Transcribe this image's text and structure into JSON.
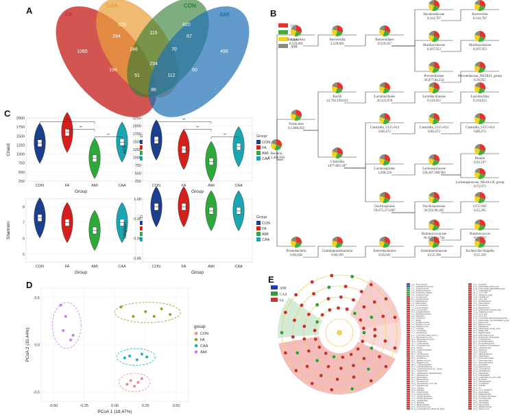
{
  "panels": {
    "A": "A",
    "B": "B",
    "C": "C",
    "D": "D",
    "E": "E"
  },
  "venn": {
    "sets": [
      {
        "name": "FA",
        "color": "#c9302c"
      },
      {
        "name": "CAA",
        "color": "#e9a03b"
      },
      {
        "name": "CON",
        "color": "#2e7d32"
      },
      {
        "name": "AMI",
        "color": "#1f6fb5"
      }
    ],
    "counts": {
      "FA_only": "1065",
      "CAA_only": "928",
      "CON_only": "820",
      "AMI_only": "496",
      "FA_CAA": "294",
      "CAA_CON": "115",
      "CON_AMI": "67",
      "FA_CAA_CON": "246",
      "CAA_CON_AMI": "70",
      "FA_CON": "196",
      "CAA_AMI": "60",
      "ALL": "234",
      "FA_CON_AMI": "51",
      "FA_CAA_AMI": "112",
      "FA_AMI": "86"
    }
  },
  "tree": {
    "legend": [
      {
        "name": "CON",
        "color": "#e8332a"
      },
      {
        "name": "FA",
        "color": "#3fae3c"
      },
      {
        "name": "CAA",
        "color": "#f2d21c"
      },
      {
        "name": "AMI",
        "color": "#8a8a78"
      }
    ],
    "nodes": [
      {
        "id": "bacteria",
        "name": "Bacteria",
        "stat": "0;1,461,836"
      },
      {
        "id": "bacteroidota",
        "name": "Bacteroidota",
        "stat": "0;529,891"
      },
      {
        "id": "bacteroidia",
        "name": "Bacteroidia",
        "stat": "2;529,891"
      },
      {
        "id": "bacteroidales",
        "name": "Bacteroidales",
        "stat": "9;529,567"
      },
      {
        "id": "bacteroidaceae",
        "name": "Bacteroidaceae",
        "stat": "0;143,707"
      },
      {
        "id": "bacteroides",
        "name": "Bacteroides",
        "stat": "0;143,707"
      },
      {
        "id": "muribaculaceae",
        "name": "Muribaculaceae",
        "stat": "0;207,953"
      },
      {
        "id": "muribaculaceae2",
        "name": "Muribaculaceae",
        "stat": "0;207,953"
      },
      {
        "id": "prevotellaceae",
        "name": "Prevotellaceae",
        "stat": "30,877;84,254"
      },
      {
        "id": "prevotellaceae2",
        "name": "Prevotellaceae_NK3B31_group",
        "stat": "0;26,955"
      },
      {
        "id": "firmicutes",
        "name": "Firmicutes",
        "stat": "6;1,088,856"
      },
      {
        "id": "bacilli",
        "name": "Bacilli",
        "stat": "23,702;199,631"
      },
      {
        "id": "lactobacillales",
        "name": "Lactobacillales",
        "stat": "26;123,978"
      },
      {
        "id": "lactobacillaceae",
        "name": "Lactobacillaceae",
        "stat": "9;119,655"
      },
      {
        "id": "lactobacillus",
        "name": "Lactobacillus",
        "stat": "0;119,655"
      },
      {
        "id": "clostridia",
        "name": "Clostridia",
        "stat": "1077;803,587"
      },
      {
        "id": "clos014a",
        "name": "Clostridia_UCG-014",
        "stat": "0;86,472"
      },
      {
        "id": "clos014b",
        "name": "Clostridia_UCG-014",
        "stat": "0;86,472"
      },
      {
        "id": "clos014c",
        "name": "Clostridia_UCG-014",
        "stat": "0;86,472"
      },
      {
        "id": "lachnospirales",
        "name": "Lachnospirales",
        "stat": "1;390,250"
      },
      {
        "id": "lachnospiraceae",
        "name": "Lachnospiraceae",
        "stat": "226,287;390,903"
      },
      {
        "id": "blautia",
        "name": "Blautia",
        "stat": "0;92,197"
      },
      {
        "id": "lachnk4a",
        "name": "Lachnospiraceae_NK4A136_group",
        "stat": "0;72,073"
      },
      {
        "id": "oscillospirales",
        "name": "Oscillospirales",
        "stat": "59,675;273,967"
      },
      {
        "id": "oscillospiraceae",
        "name": "Oscillospiraceae",
        "stat": "26,593;98,185"
      },
      {
        "id": "ucg005",
        "name": "UCG-005",
        "stat": "0;25,395"
      },
      {
        "id": "ruminococcaceae",
        "name": "Ruminococcaceae",
        "stat": "36,457;104,744"
      },
      {
        "id": "ruminococcus",
        "name": "Ruminococcus",
        "stat": "0;34,756"
      },
      {
        "id": "proteobacteria",
        "name": "Proteobacteria",
        "stat": "0;66,928"
      },
      {
        "id": "gamma",
        "name": "Gammaproteobacteria",
        "stat": "0;66,199"
      },
      {
        "id": "enterobacterales",
        "name": "Enterobacterales",
        "stat": "0;56,041"
      },
      {
        "id": "enterobacteriaceae",
        "name": "Enterobacteriaceae",
        "stat": "12;55,396"
      },
      {
        "id": "escherichia",
        "name": "Escherichia-Shigella",
        "stat": "0;55,359"
      }
    ]
  },
  "chart_data": [
    {
      "type": "violin",
      "panel": "C",
      "ylabel": "Chao1",
      "xlabel": "Group",
      "categories": [
        "CON",
        "FA",
        "AMI",
        "CAA"
      ],
      "medians": [
        1300,
        1600,
        880,
        1330
      ],
      "ylim": [
        250,
        2000
      ],
      "yticks": [
        "250",
        "500",
        "750",
        "1000",
        "1250",
        "1500",
        "1750",
        "2000"
      ],
      "significance": [
        "**",
        "**",
        "**"
      ],
      "legend_title": "Group"
    },
    {
      "type": "violin",
      "panel": "C",
      "ylabel": "ACE",
      "xlabel": "Group",
      "categories": [
        "CON",
        "FA",
        "AMI",
        "CAA"
      ],
      "medians": [
        1550,
        1250,
        870,
        1340
      ],
      "ylim": [
        250,
        2250
      ],
      "yticks": [
        "250",
        "500",
        "750",
        "1000",
        "1250",
        "1500",
        "1750",
        "2000",
        "2250"
      ],
      "significance": [
        "**",
        "**",
        "**"
      ],
      "legend_title": "Group"
    },
    {
      "type": "violin",
      "panel": "C",
      "ylabel": "Shannon",
      "xlabel": "Group",
      "categories": [
        "CON",
        "FA",
        "AMI",
        "CAA"
      ],
      "medians": [
        7.3,
        7.0,
        6.5,
        7.0
      ],
      "ylim": [
        4.5,
        8.5
      ],
      "yticks": [
        "5",
        "6",
        "7",
        "8"
      ],
      "legend_title": "Group"
    },
    {
      "type": "violin",
      "panel": "C",
      "ylabel": "Simpson",
      "xlabel": "Group",
      "categories": [
        "CON",
        "FA",
        "AMI",
        "CAA"
      ],
      "medians": [
        0.98,
        0.98,
        0.97,
        0.97
      ],
      "ylim": [
        0.84,
        1.0
      ],
      "yticks": [
        "0.85",
        "0.90",
        "0.95",
        "1.00"
      ],
      "legend_title": "Group"
    },
    {
      "type": "scatter",
      "panel": "D",
      "xlabel": "PCoA 1 (18.47%)",
      "ylabel": "PCoA 2 (15.44%)",
      "xticks": [
        "-0.50",
        "-0.25",
        "0.00",
        "0.25",
        "0.50"
      ],
      "yticks": [
        "-0.5",
        "0.0",
        "0.5"
      ],
      "legend_title": "group",
      "series": [
        {
          "name": "CON",
          "color": "#f08a82",
          "x": [
            0.1,
            0.13,
            0.16,
            0.19,
            0.22
          ],
          "y": [
            -0.42,
            -0.38,
            -0.44,
            -0.4,
            -0.36
          ]
        },
        {
          "name": "FA",
          "color": "#8aa51a",
          "x": [
            0.05,
            0.15,
            0.25,
            0.32,
            0.38,
            0.45
          ],
          "y": [
            0.4,
            0.3,
            0.35,
            0.3,
            0.38,
            0.32
          ]
        },
        {
          "name": "CAA",
          "color": "#1ab5b0",
          "x": [
            0.08,
            0.12,
            0.18,
            0.22,
            0.26
          ],
          "y": [
            -0.14,
            -0.12,
            -0.16,
            -0.1,
            -0.13
          ]
        },
        {
          "name": "AMI",
          "color": "#c37fe0",
          "x": [
            -0.44,
            -0.4,
            -0.42,
            -0.36,
            -0.34
          ],
          "y": [
            0.42,
            0.3,
            0.15,
            0.05,
            0.1
          ]
        }
      ]
    }
  ],
  "lefse": {
    "legend": [
      {
        "name": "AMI",
        "color": "#1f3fb5"
      },
      {
        "name": "CAA",
        "color": "#2e9e3c"
      },
      {
        "name": "FA",
        "color": "#c9302c"
      }
    ],
    "col1": [
      "a: p__Proteobacteria",
      "b: c__Gammaproteobacteria",
      "c: o__Enterobacterales",
      "d: f__Enterobacteriaceae",
      "e: g__Escherichia_Shigella",
      "f: p__Actinobacteriota",
      "g: c__Coriobacteriia",
      "h: o__Coriobacteriales",
      "i: f__Eggerthellaceae",
      "j: g__Adlercreutzia",
      "k: o__Lactobacillales",
      "l: f__Lactobacillaceae",
      "m: g__Lactobacillus",
      "n: o__Erysipelotrichales",
      "o: f__Erysipelotrichaceae",
      "p: g__Dubosiella",
      "q: g__Turicibacter",
      "r: c__Bacilli",
      "s: o__Staphylococcales",
      "t: f__Staphylococcaceae",
      "u: g__Staphylococcus",
      "v: c__Clostridia",
      "w: o__Clostridiales",
      "x: f__Clostridiaceae",
      "y: g__Clostridium_sensu_stricto_1",
      "z: o__Peptostreptococcales",
      "a0: f__Peptostreptococcaceae",
      "b0: g__Romboutsia",
      "c0: o__Lachnospirales",
      "d0: f__Lachnospiraceae",
      "e0: g__Blautia",
      "f0: g__Lachnoclostridium",
      "g0: g__Dorea",
      "h0: o__Oscillospirales",
      "i0: f__Oscillospiraceae",
      "j0: g__Oscillibacter",
      "k0: f__Ruminococcaceae",
      "l0: g__Ruminococcus",
      "m0: o__Christensenellales",
      "n0: f__Christensenellaceae",
      "o0: g__Christensenellaceae_R_7_group",
      "p0: c__Negativicutes",
      "q0: o__Veillonellales_Selenomonadales",
      "r0: f__Veillonellaceae",
      "s0: o__Bacteroidales",
      "t0: f__Muribaculaceae",
      "u0: f__Prevotellaceae",
      "v0: g__Prevotellaceae_UCG_001",
      "w0: f__Rikenellaceae",
      "x0: g__Alistipes",
      "y0: g__Rikenella",
      "z0: f__Tannerellaceae",
      "a1: g__Parabacteroides",
      "b1: o__Desulfovibrionales",
      "c1: f__Desulfovibrionaceae",
      "d1: g__Desulfovibrio",
      "e1: g__Bilophila",
      "f1: o__Rhodospirillales",
      "g1: f__Acetobacteraceae",
      "h1: g__Lachnospiraceae_NK4A136_group"
    ],
    "col2": [
      "i1: g__Tuzzerella",
      "j1: g__Eubacterium_hallii_group",
      "k1: g__Eubacterium_ruminantium_group",
      "l1: f__Lachnospiraceae",
      "m1: g__UCG_009",
      "n1: g__NK4A214_group",
      "o1: g__Oscillibacter",
      "p1: g__UCG_005",
      "q1: f__Oscillospiraceae",
      "r1: g__Anaerotruncus",
      "s1: g__Faecalitalea",
      "t1: g__Pygmaiobacter",
      "u1: g__Eubacterium_siraeum_group",
      "v1: g__Ruminococcaceae",
      "w1: g__UCG_010",
      "x1: g__UCG_014",
      "y1: g__Clostridium_methylpentosum_group",
      "z1: g__Eubacterium_coprostanoligenes_group",
      "a2: g__Peptococcus",
      "b2: f__Peptococcaceae",
      "c2: g__Papillibacter",
      "d2: g__Eubacterium_brachy_group",
      "e2: f__Family_XIII",
      "f2: g__Mogibacterium",
      "g2: g__Peptostreptococcus",
      "h2: g__Romboutsia_Tissierellales",
      "i2: g__Colidextribacter",
      "j2: g__Saccharimonadales",
      "k2: f__Saccharimonadaceae",
      "l2: g__Candidatus_Saccharimonas",
      "m2: p__Patescibacteria",
      "n2: g__Paludicola",
      "o2: g__Tyzzerella",
      "p2: f__Akkermansiaceae",
      "q2: g__Akkermansia",
      "r2: o__Verrucomicrobiales",
      "s2: c__Verrucomicrobiae",
      "t2: p__Verrucomicrobiota",
      "u2: g__Harryflintia",
      "v2: g__Butyricicoccus",
      "w2: g__Flavonifractor",
      "x2: g__Intestinimonas",
      "y2: g__Monoglobus",
      "z2: g__Eisenbergiella",
      "a3: g__Lachnospiraceae_UCG_006",
      "b3: g__Roseburia",
      "c3: g__Marvinbryantia",
      "d3: g__Acetatifactor",
      "e3: g__ASF356",
      "f3: g__A2",
      "g3: g__GCA_900066575",
      "h3: g__Anaerostipes",
      "i3: g__Negativibacillus",
      "j3: g__Erysipelatoclostridium",
      "k3: g__Faecalibaculum",
      "l3: g__Allobaculum",
      "m3: g__Holdemania",
      "n3: g__Ileibacterium",
      "o3: g__Bifidobacterium",
      "p3: g__Enterococcus"
    ]
  }
}
